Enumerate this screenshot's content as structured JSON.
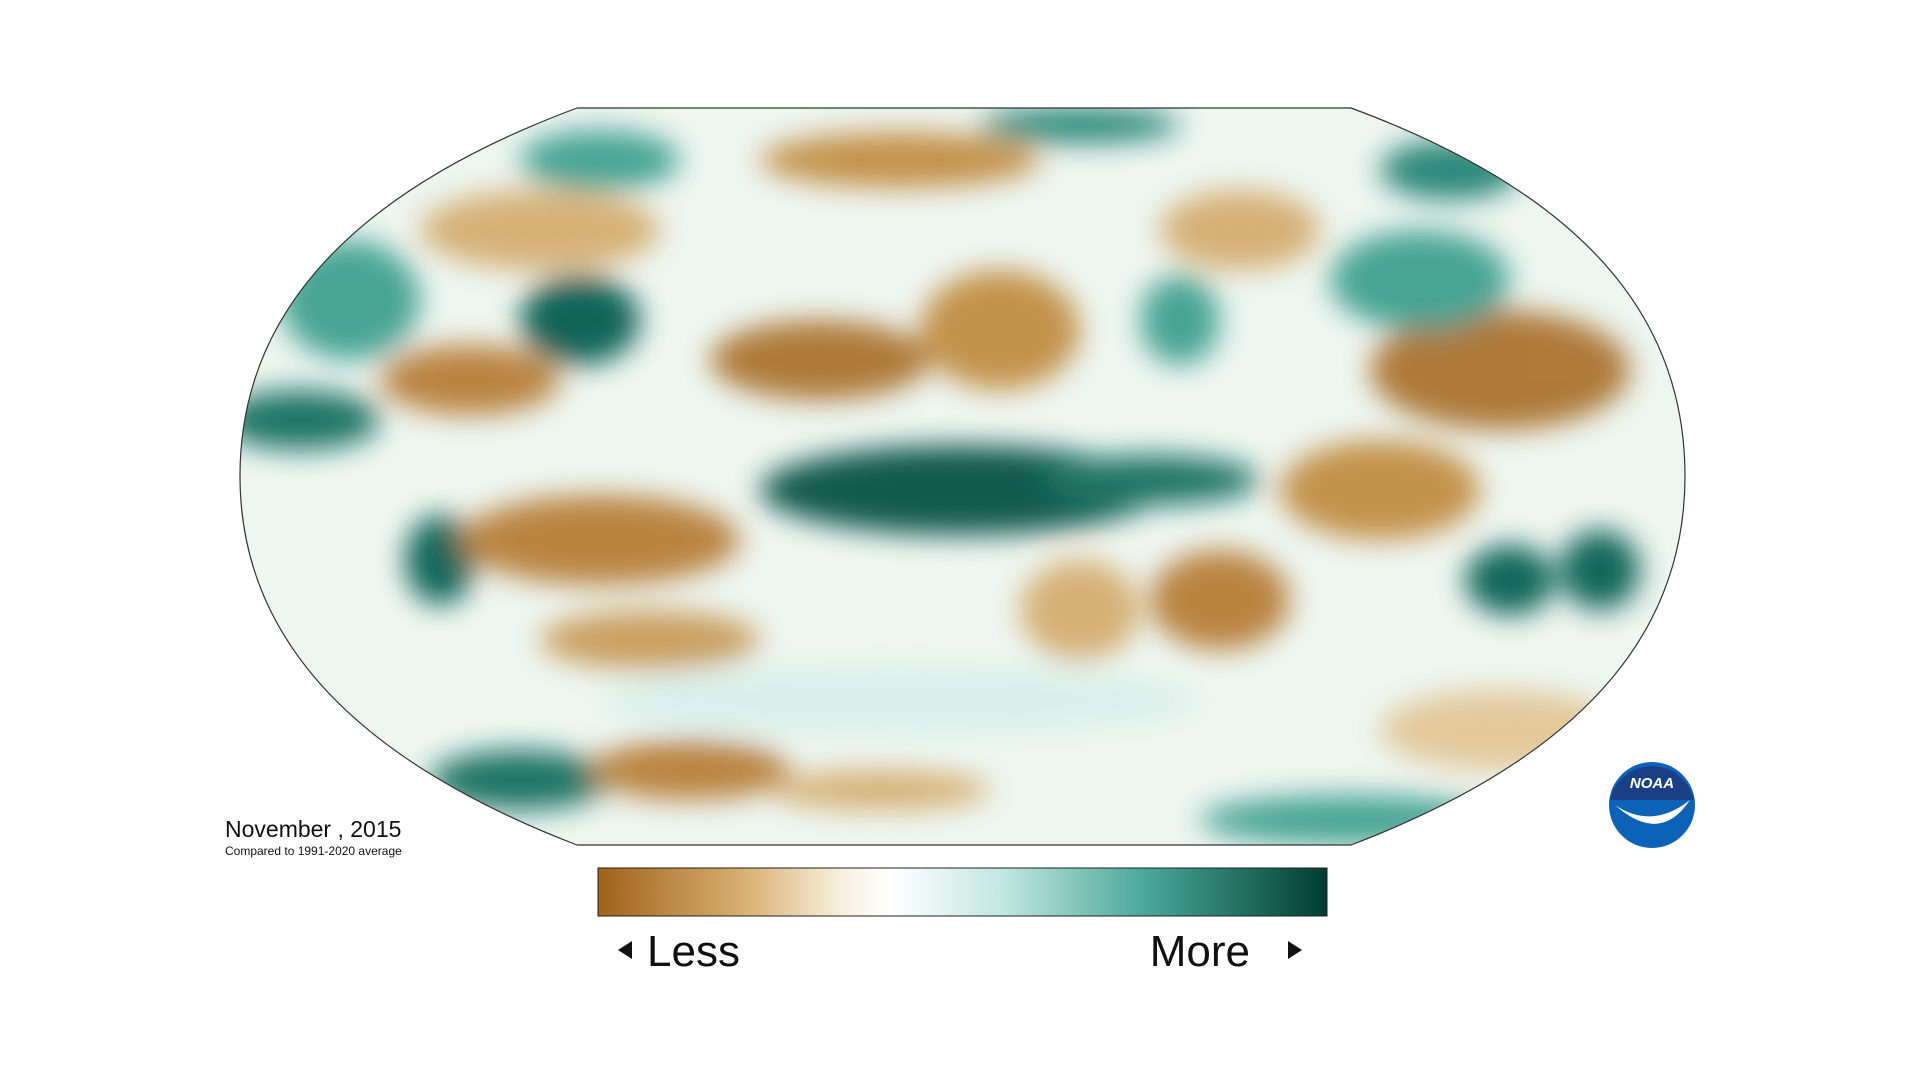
{
  "map": {
    "date_label": "November , 2015",
    "subtitle": "Compared to 1991-2020 average",
    "legend": {
      "low_label": "Less",
      "high_label": "More"
    }
  },
  "logo": {
    "text": "NOAA"
  }
}
